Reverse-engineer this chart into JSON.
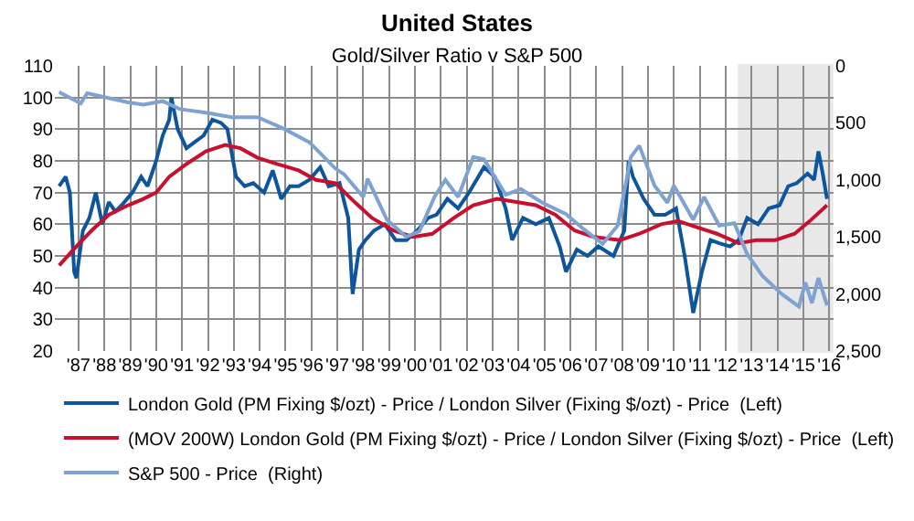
{
  "chart_data": {
    "type": "line",
    "title": "United States",
    "subtitle": "Gold/Silver Ratio v S&P 500",
    "xlim": [
      "1986-08-01",
      "2016-09-01"
    ],
    "xticks": [
      {
        "value": "1987-07-01",
        "label": "'87"
      },
      {
        "value": "1988-07-01",
        "label": "'88"
      },
      {
        "value": "1989-07-01",
        "label": "'89"
      },
      {
        "value": "1990-07-01",
        "label": "'90"
      },
      {
        "value": "1991-07-01",
        "label": "'91"
      },
      {
        "value": "1992-07-01",
        "label": "'92"
      },
      {
        "value": "1993-07-01",
        "label": "'93"
      },
      {
        "value": "1994-07-01",
        "label": "'94"
      },
      {
        "value": "1995-07-01",
        "label": "'95"
      },
      {
        "value": "1996-07-01",
        "label": "'96"
      },
      {
        "value": "1997-07-01",
        "label": "'97"
      },
      {
        "value": "1998-07-01",
        "label": "'98"
      },
      {
        "value": "1999-07-01",
        "label": "'99"
      },
      {
        "value": "2000-07-01",
        "label": "'00"
      },
      {
        "value": "2001-07-01",
        "label": "'01"
      },
      {
        "value": "2002-07-01",
        "label": "'02"
      },
      {
        "value": "2003-07-01",
        "label": "'03"
      },
      {
        "value": "2004-07-01",
        "label": "'04"
      },
      {
        "value": "2005-07-01",
        "label": "'05"
      },
      {
        "value": "2006-07-01",
        "label": "'06"
      },
      {
        "value": "2007-07-01",
        "label": "'07"
      },
      {
        "value": "2008-07-01",
        "label": "'08"
      },
      {
        "value": "2009-07-01",
        "label": "'09"
      },
      {
        "value": "2010-07-01",
        "label": "'10"
      },
      {
        "value": "2011-07-01",
        "label": "'11"
      },
      {
        "value": "2012-07-01",
        "label": "'12"
      },
      {
        "value": "2013-07-01",
        "label": "'13"
      },
      {
        "value": "2014-07-01",
        "label": "'14"
      },
      {
        "value": "2015-07-01",
        "label": "'15"
      },
      {
        "value": "2016-07-01",
        "label": "'16"
      }
    ],
    "ylim": [
      20,
      110
    ],
    "yticks": [
      20,
      30,
      40,
      50,
      60,
      70,
      80,
      90,
      100,
      110
    ],
    "y2lim": [
      2500,
      0
    ],
    "y2ticks": [
      0,
      500,
      {
        "value": 1000,
        "label": "1,000"
      },
      {
        "value": 1500,
        "label": "1,500"
      },
      {
        "value": 2000,
        "label": "2,000"
      },
      {
        "value": 2500,
        "label": "2,500"
      }
    ],
    "grid": true,
    "legend": "bottom",
    "marker": "none",
    "line_style": "solid",
    "bands": [
      {
        "axis": "x",
        "from": "2013-01-15",
        "to": "2016-08-01",
        "color": "#bfbfbf"
      }
    ],
    "series": [
      {
        "name": "London Gold (PM Fixing $/ozt) - Price / London Silver (Fixing $/ozt) - Price  (Left)",
        "color": "#0d559c",
        "x": [
          "1986-10",
          "1987-01",
          "1987-03",
          "1987-05",
          "1987-06",
          "1987-09",
          "1987-12",
          "1988-03",
          "1988-06",
          "1988-09",
          "1988-12",
          "1989-03",
          "1989-08",
          "1989-12",
          "1990-03",
          "1990-07",
          "1990-10",
          "1991-01",
          "1991-02",
          "1991-05",
          "1991-09",
          "1992-01",
          "1992-05",
          "1992-09",
          "1993-01",
          "1993-04",
          "1993-08",
          "1993-12",
          "1994-04",
          "1994-09",
          "1995-01",
          "1995-05",
          "1995-09",
          "1996-01",
          "1996-06",
          "1996-11",
          "1997-03",
          "1997-08",
          "1997-12",
          "1998-02",
          "1998-05",
          "1998-08",
          "1998-12",
          "1999-05",
          "1999-10",
          "2000-03",
          "2000-08",
          "2001-01",
          "2001-05",
          "2001-10",
          "2002-03",
          "2002-08",
          "2003-03",
          "2003-08",
          "2004-01",
          "2004-04",
          "2004-09",
          "2005-03",
          "2005-09",
          "2006-02",
          "2006-05",
          "2006-10",
          "2007-03",
          "2007-08",
          "2008-03",
          "2008-08",
          "2008-10",
          "2008-12",
          "2009-05",
          "2009-10",
          "2010-03",
          "2010-08",
          "2010-12",
          "2011-04",
          "2011-08",
          "2011-12",
          "2012-04",
          "2012-09",
          "2013-01",
          "2013-05",
          "2013-10",
          "2014-03",
          "2014-08",
          "2014-12",
          "2015-04",
          "2015-09",
          "2015-12",
          "2016-02",
          "2016-04",
          "2016-06"
        ],
        "values": [
          72,
          75,
          70,
          45,
          43,
          58,
          62,
          70,
          60,
          67,
          64,
          66,
          70,
          75,
          72,
          80,
          88,
          93,
          100,
          90,
          84,
          86,
          88,
          93,
          92,
          90,
          75,
          72,
          73,
          70,
          77,
          68,
          72,
          72,
          74,
          78,
          72,
          73,
          62,
          38,
          52,
          55,
          58,
          60,
          55,
          55,
          58,
          62,
          63,
          68,
          65,
          70,
          78,
          75,
          65,
          55,
          62,
          60,
          62,
          53,
          45,
          52,
          50,
          53,
          50,
          58,
          80,
          75,
          68,
          63,
          63,
          65,
          50,
          32,
          45,
          55,
          54,
          53,
          55,
          62,
          60,
          65,
          66,
          72,
          73,
          76,
          74,
          83,
          76,
          68
        ]
      },
      {
        "name": "(MOV 200W) London Gold (PM Fixing $/ozt) - Price / London Silver (Fixing $/ozt) - Price  (Left)",
        "color": "#c8102e",
        "x": [
          "1986-10",
          "1987-06",
          "1988-01",
          "1988-09",
          "1989-06",
          "1990-01",
          "1990-07",
          "1991-01",
          "1991-09",
          "1992-06",
          "1993-03",
          "1993-10",
          "1994-06",
          "1995-03",
          "1996-01",
          "1996-09",
          "1997-06",
          "1998-03",
          "1998-11",
          "1999-09",
          "2000-06",
          "2001-03",
          "2002-01",
          "2002-10",
          "2003-09",
          "2004-06",
          "2005-03",
          "2005-12",
          "2006-09",
          "2007-06",
          "2008-06",
          "2009-03",
          "2010-01",
          "2010-09",
          "2011-06",
          "2012-03",
          "2013-01",
          "2013-09",
          "2014-06",
          "2015-03",
          "2015-10",
          "2016-06"
        ],
        "values": [
          47,
          53,
          58,
          63,
          66,
          68,
          70,
          75,
          79,
          83,
          85,
          84,
          81,
          79,
          77,
          74,
          73,
          67,
          62,
          58,
          56,
          57,
          62,
          66,
          68,
          67,
          66,
          63,
          58,
          56,
          55,
          57,
          60,
          61,
          59,
          57,
          54,
          55,
          55,
          57,
          61,
          66
        ]
      },
      {
        "name": "S&P 500 - Price  (Right)",
        "color": "#7ea3d2",
        "axis": "y2",
        "x": [
          "1986-10",
          "1987-08",
          "1987-11",
          "1988-06",
          "1989-06",
          "1990-01",
          "1990-10",
          "1991-06",
          "1992-06",
          "1993-06",
          "1994-06",
          "1995-06",
          "1996-06",
          "1997-06",
          "1997-10",
          "1998-07",
          "1998-09",
          "1999-06",
          "2000-03",
          "2000-09",
          "2001-04",
          "2001-09",
          "2002-03",
          "2002-10",
          "2003-03",
          "2004-01",
          "2004-08",
          "2005-06",
          "2006-05",
          "2007-01",
          "2007-10",
          "2008-05",
          "2008-11",
          "2009-03",
          "2009-10",
          "2010-04",
          "2010-07",
          "2011-04",
          "2011-09",
          "2012-04",
          "2012-11",
          "2013-05",
          "2013-12",
          "2014-09",
          "2015-05",
          "2015-08",
          "2015-11",
          "2016-02",
          "2016-06"
        ],
        "values": [
          230,
          330,
          240,
          270,
          320,
          340,
          310,
          380,
          410,
          450,
          450,
          550,
          670,
          900,
          950,
          1150,
          990,
          1350,
          1500,
          1450,
          1150,
          1000,
          1150,
          800,
          820,
          1130,
          1080,
          1200,
          1300,
          1430,
          1560,
          1400,
          800,
          700,
          1050,
          1200,
          1050,
          1350,
          1150,
          1400,
          1380,
          1650,
          1840,
          2000,
          2110,
          1900,
          2080,
          1860,
          2100
        ]
      }
    ]
  }
}
